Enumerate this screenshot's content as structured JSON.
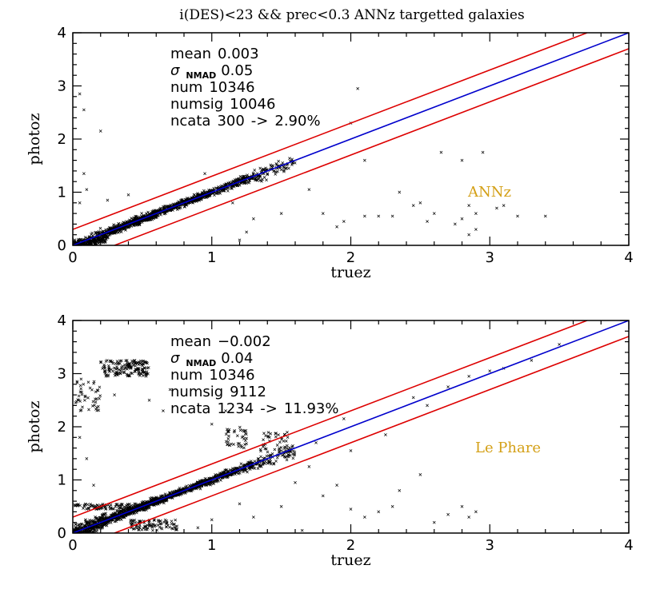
{
  "title": "i(DES)<23 && prec<0.3 ANNz targetted galaxies",
  "colors": {
    "outlier_line": "#dd0000",
    "one_to_one_line": "#0000cc",
    "points": "#000000",
    "code_label": "#d4a017"
  },
  "chart_data": [
    {
      "type": "scatter",
      "code_label": "ANNz",
      "xlabel": "truez",
      "ylabel": "photoz",
      "xlim": [
        0,
        4
      ],
      "ylim": [
        0,
        4
      ],
      "xticks": [
        "0",
        "1",
        "2",
        "3",
        "4"
      ],
      "yticks": [
        "0",
        "1",
        "2",
        "3",
        "4"
      ],
      "grid": false,
      "stats": {
        "mean_label": "mean",
        "mean_value": "0.003",
        "sigma_symbol": "σ",
        "sigma_subscript": "NMAD",
        "sigma_value": "0.05",
        "num_label": "num",
        "num_value": "10346",
        "numsig_label": "numsig",
        "numsig_value": "10046",
        "ncata_label": "ncata",
        "ncata_value": "300",
        "ncata_arrow": "->",
        "ncata_percent": "2.90%"
      },
      "lines": [
        {
          "role": "one-to-one",
          "points": [
            [
              0,
              0
            ],
            [
              4,
              4
            ]
          ]
        },
        {
          "role": "upper-outlier-bound",
          "points": [
            [
              0,
              0.3
            ],
            [
              3.7,
              4
            ]
          ]
        },
        {
          "role": "lower-outlier-bound",
          "points": [
            [
              0.3,
              0
            ],
            [
              4,
              3.7
            ]
          ]
        }
      ],
      "clusters": [
        {
          "x": [
            0.0,
            0.25
          ],
          "y_offset": [
            -0.25,
            0.15
          ],
          "count": 300
        },
        {
          "x": [
            0.25,
            0.6
          ],
          "y_offset": [
            -0.12,
            0.12
          ],
          "count": 450
        },
        {
          "x": [
            0.6,
            1.0
          ],
          "y_offset": [
            -0.1,
            0.1
          ],
          "count": 380
        },
        {
          "x": [
            1.0,
            1.3
          ],
          "y_offset": [
            -0.12,
            0.12
          ],
          "count": 200
        },
        {
          "x": [
            1.3,
            1.6
          ],
          "y_offset": [
            -0.2,
            0.15
          ],
          "count": 90
        }
      ],
      "outliers": [
        [
          0.05,
          2.85
        ],
        [
          0.08,
          2.55
        ],
        [
          0.2,
          2.15
        ],
        [
          0.08,
          1.35
        ],
        [
          0.1,
          1.05
        ],
        [
          0.05,
          0.8
        ],
        [
          0.25,
          0.85
        ],
        [
          0.4,
          0.95
        ],
        [
          1.2,
          0.1
        ],
        [
          1.25,
          0.25
        ],
        [
          1.3,
          0.5
        ],
        [
          1.5,
          0.6
        ],
        [
          1.7,
          1.05
        ],
        [
          1.8,
          0.6
        ],
        [
          1.9,
          0.35
        ],
        [
          2.0,
          2.3
        ],
        [
          2.05,
          2.95
        ],
        [
          2.1,
          1.6
        ],
        [
          2.2,
          0.55
        ],
        [
          2.3,
          0.55
        ],
        [
          2.35,
          1.0
        ],
        [
          2.45,
          0.75
        ],
        [
          2.5,
          0.8
        ],
        [
          2.6,
          0.6
        ],
        [
          2.65,
          1.75
        ],
        [
          2.75,
          0.4
        ],
        [
          2.8,
          1.6
        ],
        [
          2.85,
          0.2
        ],
        [
          2.9,
          0.3
        ],
        [
          2.95,
          1.75
        ],
        [
          3.05,
          0.7
        ],
        [
          3.1,
          0.75
        ],
        [
          3.2,
          0.55
        ],
        [
          3.4,
          0.55
        ],
        [
          2.85,
          0.75
        ],
        [
          2.55,
          0.45
        ],
        [
          2.9,
          0.6
        ],
        [
          2.8,
          0.5
        ],
        [
          1.95,
          0.45
        ],
        [
          2.1,
          0.55
        ],
        [
          0.95,
          1.35
        ],
        [
          1.15,
          0.8
        ]
      ]
    },
    {
      "type": "scatter",
      "code_label": "Le Phare",
      "xlabel": "truez",
      "ylabel": "photoz",
      "xlim": [
        0,
        4
      ],
      "ylim": [
        0,
        4
      ],
      "xticks": [
        "0",
        "1",
        "2",
        "3",
        "4"
      ],
      "yticks": [
        "0",
        "1",
        "2",
        "3",
        "4"
      ],
      "grid": false,
      "stats": {
        "mean_label": "mean",
        "mean_value": "−0.002",
        "sigma_symbol": "σ",
        "sigma_subscript": "NMAD",
        "sigma_value": "0.04",
        "num_label": "num",
        "num_value": "10346",
        "numsig_label": "numsig",
        "numsig_value": "9112",
        "ncata_label": "ncata",
        "ncata_value": "1234",
        "ncata_arrow": "->",
        "ncata_percent": "11.93%"
      },
      "lines": [
        {
          "role": "one-to-one",
          "points": [
            [
              0,
              0
            ],
            [
              4,
              4
            ]
          ]
        },
        {
          "role": "upper-outlier-bound",
          "points": [
            [
              0,
              0.3
            ],
            [
              3.7,
              4
            ]
          ]
        },
        {
          "role": "lower-outlier-bound",
          "points": [
            [
              0.3,
              0
            ],
            [
              4,
              3.7
            ]
          ]
        }
      ],
      "clusters": [
        {
          "x": [
            0.0,
            0.25
          ],
          "y_offset": [
            -0.2,
            0.2
          ],
          "count": 280
        },
        {
          "x": [
            0.25,
            0.6
          ],
          "y_offset": [
            -0.12,
            0.12
          ],
          "count": 450
        },
        {
          "x": [
            0.6,
            1.0
          ],
          "y_offset": [
            -0.1,
            0.1
          ],
          "count": 380
        },
        {
          "x": [
            1.0,
            1.3
          ],
          "y_offset": [
            -0.12,
            0.12
          ],
          "count": 200
        },
        {
          "x": [
            1.3,
            1.6
          ],
          "y_offset": [
            -0.2,
            0.15
          ],
          "count": 90
        },
        {
          "x": [
            0.2,
            0.55
          ],
          "y_abs": [
            2.95,
            3.25
          ],
          "count": 160
        },
        {
          "x": [
            0.0,
            0.2
          ],
          "y_abs": [
            2.3,
            2.9
          ],
          "count": 45
        },
        {
          "x": [
            0.0,
            0.45
          ],
          "y_abs": [
            0.45,
            0.55
          ],
          "count": 90
        },
        {
          "x": [
            0.4,
            0.75
          ],
          "y_abs": [
            0.05,
            0.25
          ],
          "count": 90
        },
        {
          "x": [
            1.1,
            1.25
          ],
          "y_abs": [
            1.6,
            2.0
          ],
          "count": 40
        },
        {
          "x": [
            1.35,
            1.55
          ],
          "y_abs": [
            1.5,
            1.9
          ],
          "count": 40
        }
      ],
      "outliers": [
        [
          0.05,
          1.8
        ],
        [
          0.1,
          1.4
        ],
        [
          0.55,
          2.5
        ],
        [
          0.65,
          2.3
        ],
        [
          0.7,
          2.7
        ],
        [
          0.3,
          2.6
        ],
        [
          1.0,
          2.05
        ],
        [
          1.1,
          2.3
        ],
        [
          1.2,
          0.55
        ],
        [
          1.3,
          0.3
        ],
        [
          1.5,
          0.5
        ],
        [
          1.6,
          0.95
        ],
        [
          1.7,
          1.25
        ],
        [
          1.8,
          0.7
        ],
        [
          1.9,
          0.9
        ],
        [
          2.0,
          0.45
        ],
        [
          2.1,
          0.3
        ],
        [
          2.2,
          0.4
        ],
        [
          2.3,
          0.5
        ],
        [
          2.35,
          0.8
        ],
        [
          2.5,
          1.1
        ],
        [
          2.6,
          0.2
        ],
        [
          2.7,
          0.35
        ],
        [
          2.8,
          0.5
        ],
        [
          2.85,
          0.3
        ],
        [
          2.9,
          0.4
        ],
        [
          2.55,
          2.4
        ],
        [
          2.7,
          2.75
        ],
        [
          2.85,
          2.95
        ],
        [
          3.1,
          3.1
        ],
        [
          3.3,
          3.25
        ],
        [
          3.5,
          3.55
        ],
        [
          2.45,
          2.55
        ],
        [
          2.0,
          1.55
        ],
        [
          2.25,
          1.85
        ],
        [
          1.95,
          2.15
        ],
        [
          1.75,
          1.7
        ],
        [
          3.0,
          3.05
        ],
        [
          1.65,
          0.05
        ],
        [
          0.9,
          0.1
        ],
        [
          1.0,
          0.25
        ],
        [
          0.15,
          0.9
        ]
      ]
    }
  ]
}
